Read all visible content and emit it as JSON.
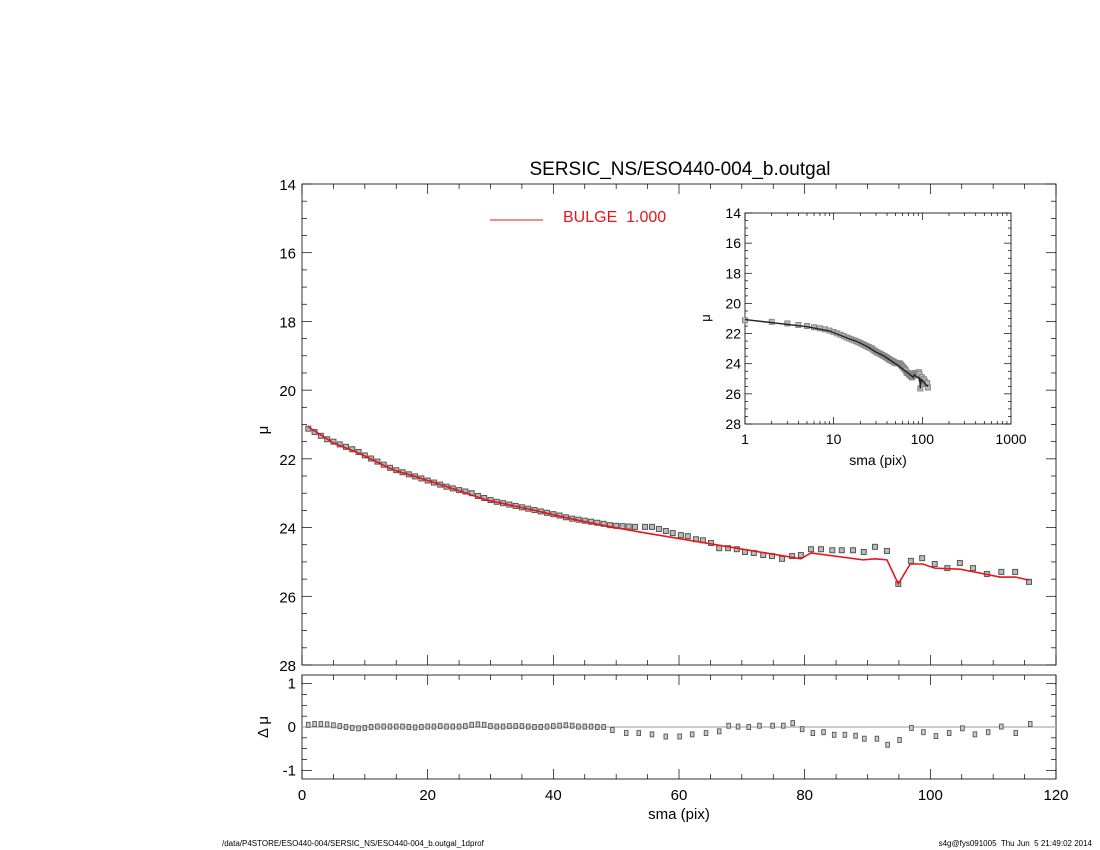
{
  "chart_data": [
    {
      "panel": "main",
      "type": "scatter",
      "title": "SERSIC_NS/ESO440-004_b.outgal",
      "xlabel": "",
      "ylabel": "μ",
      "xlim": [
        0,
        120
      ],
      "ylim": [
        28,
        14
      ],
      "y_inverted": true,
      "xticks": [
        "0",
        "20",
        "40",
        "60",
        "80",
        "100",
        "120"
      ],
      "yticks": [
        "14",
        "16",
        "18",
        "20",
        "22",
        "24",
        "26",
        "28"
      ],
      "grid": false,
      "legend": {
        "placement": "top-center",
        "entries": [
          {
            "label": "BULGE  1.000",
            "color": "#e8141b"
          }
        ]
      },
      "observed": {
        "marker": "square",
        "color": "#555555",
        "x": [
          1,
          2,
          3,
          4,
          5,
          6,
          7,
          8,
          9,
          10,
          11,
          12,
          13,
          14,
          15,
          16,
          17,
          18,
          19,
          20,
          21,
          22,
          23,
          24,
          25,
          26,
          27,
          28,
          29,
          30,
          31,
          32,
          33,
          34,
          35,
          36,
          37,
          38,
          39,
          40,
          41,
          42,
          43,
          44,
          45,
          46,
          47,
          48,
          49,
          50,
          51,
          52,
          53,
          54.6,
          55.7,
          56.8,
          57.9,
          59.0,
          60.3,
          61.4,
          62.7,
          63.8,
          65.1,
          66.4,
          67.8,
          69.2,
          70.5,
          71.9,
          73.4,
          74.8,
          76.4,
          78.0,
          79.4,
          81.0,
          82.6,
          84.4,
          85.9,
          87.7,
          89.4,
          91.2,
          93.1,
          94.9,
          96.9,
          98.7,
          100.7,
          102.7,
          104.7,
          106.8,
          109.0,
          111.3,
          113.5,
          115.7
        ],
        "y": [
          21.12,
          21.22,
          21.33,
          21.43,
          21.5,
          21.58,
          21.65,
          21.72,
          21.8,
          21.9,
          21.99,
          22.08,
          22.17,
          22.26,
          22.33,
          22.39,
          22.45,
          22.51,
          22.57,
          22.63,
          22.69,
          22.75,
          22.81,
          22.86,
          22.91,
          22.95,
          23.0,
          23.08,
          23.14,
          23.2,
          23.25,
          23.29,
          23.33,
          23.37,
          23.41,
          23.45,
          23.49,
          23.53,
          23.57,
          23.61,
          23.65,
          23.7,
          23.74,
          23.77,
          23.8,
          23.83,
          23.86,
          23.89,
          23.93,
          23.95,
          23.96,
          23.97,
          23.98,
          23.98,
          23.98,
          24.04,
          24.1,
          24.16,
          24.22,
          24.25,
          24.34,
          24.37,
          24.45,
          24.6,
          24.6,
          24.63,
          24.71,
          24.74,
          24.8,
          24.83,
          24.91,
          24.83,
          24.8,
          24.63,
          24.63,
          24.66,
          24.66,
          24.66,
          24.71,
          24.56,
          24.68,
          25.64,
          24.97,
          24.89,
          25.06,
          25.18,
          25.03,
          25.18,
          25.35,
          25.29,
          25.29,
          25.58
        ]
      },
      "model": {
        "name": "BULGE  1.000",
        "color": "#e8141b",
        "x": [
          1,
          5,
          9,
          14.5,
          18.3,
          24.7,
          29.4,
          36.8,
          42.2,
          47.4,
          53.8,
          79.4,
          81.0,
          89.3,
          91.2,
          93.1,
          94.9,
          96.8,
          98.8,
          100.7,
          104.7,
          111.1,
          113.5,
          115.7
        ],
        "y": [
          21.07,
          21.54,
          21.83,
          22.32,
          22.53,
          22.91,
          23.2,
          23.49,
          23.72,
          23.92,
          24.13,
          24.91,
          24.74,
          24.94,
          24.91,
          24.94,
          25.64,
          25.06,
          25.06,
          25.18,
          25.21,
          25.44,
          25.44,
          25.53
        ]
      }
    },
    {
      "panel": "inset",
      "type": "scatter",
      "xlabel": "sma (pix)",
      "ylabel": "μ",
      "xscale": "log",
      "xlim": [
        1,
        1000
      ],
      "ylim": [
        28,
        14
      ],
      "y_inverted": true,
      "xticks": [
        "1",
        "10",
        "100",
        "1000"
      ],
      "yticks": [
        "14",
        "16",
        "18",
        "20",
        "22",
        "24",
        "26",
        "28"
      ],
      "series_source": "same observed and model profiles as main panel",
      "model_color": "#222222"
    },
    {
      "panel": "residual",
      "type": "scatter",
      "xlabel": "sma (pix)",
      "ylabel": "Δ μ",
      "xlim": [
        0,
        120
      ],
      "ylim": [
        -1,
        1
      ],
      "xticks": [
        "0",
        "20",
        "40",
        "60",
        "80",
        "100",
        "120"
      ],
      "yticks": [
        "1",
        "0",
        "-1"
      ],
      "x": [
        1,
        2,
        3,
        4,
        5,
        6,
        7,
        8,
        9,
        10,
        11,
        12,
        13,
        14,
        15,
        16,
        17,
        18,
        19,
        20,
        21,
        22,
        23,
        24,
        25,
        26,
        27,
        28,
        29,
        30,
        31,
        32,
        33,
        34,
        35,
        36,
        37,
        38,
        39,
        40,
        41,
        42,
        43,
        44,
        45,
        46,
        47,
        48,
        49.4,
        51.6,
        53.6,
        55.7,
        57.9,
        60.1,
        62.1,
        64.3,
        66.4,
        67.9,
        69.4,
        71.1,
        72.8,
        74.9,
        76.6,
        78.1,
        79.6,
        81.3,
        83.0,
        84.7,
        86.4,
        88.1,
        89.5,
        91.5,
        93.2,
        95.1,
        97.0,
        98.9,
        100.9,
        103.0,
        105.1,
        107.1,
        109.2,
        111.3,
        113.6,
        115.9
      ],
      "y": [
        0.05,
        0.07,
        0.07,
        0.06,
        0.04,
        0.02,
        0,
        -0.02,
        -0.03,
        -0.02,
        0,
        0.01,
        0.01,
        0.01,
        0.01,
        0.01,
        0,
        -0.01,
        0,
        0.01,
        0.01,
        0.02,
        0.01,
        0.01,
        0.01,
        0.02,
        0.05,
        0.06,
        0.05,
        0.02,
        0.01,
        0.01,
        0.02,
        0.02,
        0.02,
        0.01,
        0,
        0,
        0.01,
        0.02,
        0.03,
        0.04,
        0.03,
        0.01,
        0.01,
        0.01,
        0,
        0,
        -0.07,
        -0.14,
        -0.14,
        -0.17,
        -0.22,
        -0.22,
        -0.17,
        -0.14,
        -0.1,
        0.03,
        0.01,
        0,
        0.03,
        0.03,
        0.03,
        0.09,
        -0.05,
        -0.14,
        -0.12,
        -0.18,
        -0.18,
        -0.2,
        -0.27,
        -0.27,
        -0.41,
        -0.3,
        -0.02,
        -0.12,
        -0.21,
        -0.14,
        -0.03,
        -0.17,
        -0.12,
        0.01,
        -0.14,
        0.07
      ]
    }
  ],
  "footer": {
    "left": "/data/P4STORE/ESO440-004/SERSIC_NS/ESO440-004_b.outgal_1dprof",
    "right": "s4g@fys091005  Thu Jun  5 21:49:02 2014"
  }
}
